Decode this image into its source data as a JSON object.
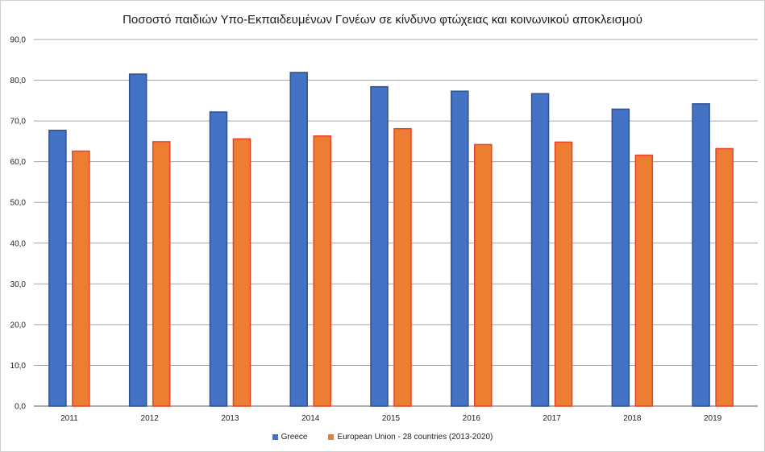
{
  "chart_data": {
    "type": "bar",
    "title": "Ποσοστό παιδιών Υπο-Εκπαιδευμένων Γονέων σε κίνδυνο φτώχειας και κοινωνικού αποκλεισμού",
    "categories": [
      "2011",
      "2012",
      "2013",
      "2014",
      "2015",
      "2016",
      "2017",
      "2018",
      "2019"
    ],
    "series": [
      {
        "name": "Greece",
        "color": "#4472c4",
        "border": "#2f528f",
        "values": [
          67.7,
          81.5,
          72.2,
          81.9,
          78.4,
          77.3,
          76.7,
          72.9,
          74.2
        ]
      },
      {
        "name": "European Union - 28 countries (2013-2020)",
        "color": "#ed7d31",
        "border": "#e8422a",
        "values": [
          62.6,
          64.9,
          65.6,
          66.3,
          68.1,
          64.2,
          64.8,
          61.6,
          63.2
        ]
      }
    ],
    "ylim": [
      0,
      90
    ],
    "yticks": [
      "0,0",
      "10,0",
      "20,0",
      "30,0",
      "40,0",
      "50,0",
      "60,0",
      "70,0",
      "80,0",
      "90,0"
    ],
    "grid": true,
    "legend_position": "bottom"
  }
}
